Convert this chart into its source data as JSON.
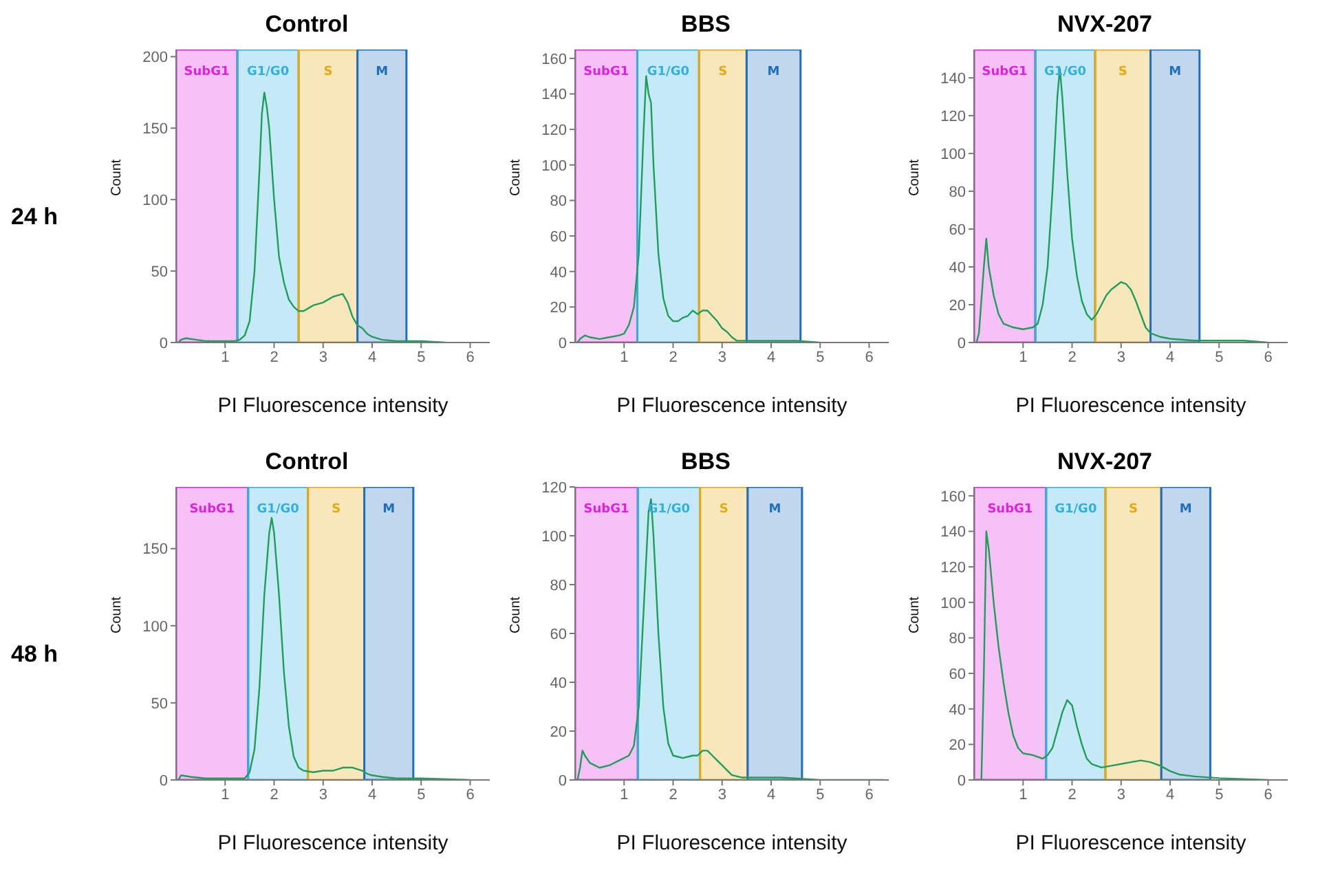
{
  "chart_data": [
    {
      "type": "line",
      "title": "Control",
      "xlabel": "PI Fluorescence intensity",
      "ylabel": "Count",
      "annotations": [
        "24 h"
      ],
      "xlim": [
        0,
        6.4
      ],
      "xticks": [
        1,
        2,
        3,
        4,
        5,
        6
      ],
      "ylim": [
        0,
        205
      ],
      "yticks": [
        0,
        50,
        100,
        150,
        200
      ],
      "grid": false,
      "marker": "none",
      "bands": [
        {
          "axis": "x",
          "from": 0,
          "to": 1.25,
          "label": "SubG1",
          "color": "#e020e0"
        },
        {
          "axis": "x",
          "from": 1.25,
          "to": 2.5,
          "label": "G1/G0",
          "color": "#30b0e0"
        },
        {
          "axis": "x",
          "from": 2.5,
          "to": 3.7,
          "label": "S",
          "color": "#e8a810"
        },
        {
          "axis": "x",
          "from": 3.7,
          "to": 4.7,
          "label": "M",
          "color": "#1f6fbf"
        }
      ],
      "series": [
        {
          "color": "#1e9e5a",
          "x": [
            0.05,
            0.1,
            0.2,
            0.4,
            0.6,
            0.8,
            1.0,
            1.2,
            1.3,
            1.4,
            1.5,
            1.6,
            1.7,
            1.75,
            1.8,
            1.85,
            1.9,
            2.0,
            2.1,
            2.2,
            2.3,
            2.4,
            2.5,
            2.6,
            2.7,
            2.8,
            2.9,
            3.0,
            3.1,
            3.2,
            3.3,
            3.4,
            3.5,
            3.6,
            3.7,
            3.8,
            3.9,
            4.0,
            4.2,
            4.5,
            5.0,
            5.5
          ],
          "values": [
            0,
            2,
            3,
            2,
            1,
            1,
            1,
            1,
            2,
            5,
            15,
            50,
            120,
            160,
            175,
            165,
            150,
            100,
            60,
            42,
            30,
            25,
            22,
            22,
            24,
            26,
            27,
            28,
            30,
            32,
            33,
            34,
            28,
            18,
            12,
            10,
            6,
            4,
            2,
            1,
            1,
            0
          ]
        }
      ]
    },
    {
      "type": "line",
      "title": "BBS",
      "xlabel": "PI Fluorescence intensity",
      "ylabel": "Count",
      "xlim": [
        0,
        6.4
      ],
      "xticks": [
        1,
        2,
        3,
        4,
        5,
        6
      ],
      "ylim": [
        0,
        165
      ],
      "yticks": [
        0,
        20,
        40,
        60,
        80,
        100,
        120,
        140,
        160
      ],
      "grid": false,
      "marker": "none",
      "bands": [
        {
          "axis": "x",
          "from": 0,
          "to": 1.27,
          "label": "SubG1",
          "color": "#e020e0"
        },
        {
          "axis": "x",
          "from": 1.27,
          "to": 2.53,
          "label": "G1/G0",
          "color": "#30b0e0"
        },
        {
          "axis": "x",
          "from": 2.53,
          "to": 3.5,
          "label": "S",
          "color": "#e8a810"
        },
        {
          "axis": "x",
          "from": 3.5,
          "to": 4.6,
          "label": "M",
          "color": "#1f6fbf"
        }
      ],
      "series": [
        {
          "color": "#1e9e5a",
          "x": [
            0.05,
            0.1,
            0.2,
            0.3,
            0.5,
            0.7,
            0.9,
            1.0,
            1.1,
            1.2,
            1.3,
            1.4,
            1.45,
            1.5,
            1.55,
            1.6,
            1.7,
            1.8,
            1.9,
            2.0,
            2.1,
            2.2,
            2.3,
            2.4,
            2.5,
            2.6,
            2.7,
            2.8,
            2.9,
            3.0,
            3.1,
            3.2,
            3.3,
            3.5,
            4.0,
            4.5,
            5.0
          ],
          "values": [
            0,
            2,
            4,
            3,
            2,
            3,
            4,
            5,
            10,
            20,
            50,
            120,
            150,
            140,
            135,
            100,
            50,
            25,
            15,
            12,
            12,
            14,
            15,
            18,
            16,
            18,
            18,
            15,
            12,
            8,
            6,
            3,
            1,
            1,
            1,
            1,
            0
          ]
        }
      ]
    },
    {
      "type": "line",
      "title": "NVX-207",
      "xlabel": "PI Fluorescence intensity",
      "ylabel": "Count",
      "xlim": [
        0,
        6.4
      ],
      "xticks": [
        1,
        2,
        3,
        4,
        5,
        6
      ],
      "ylim": [
        0,
        155
      ],
      "yticks": [
        0,
        20,
        40,
        60,
        80,
        100,
        120,
        140
      ],
      "grid": false,
      "marker": "none",
      "bands": [
        {
          "axis": "x",
          "from": 0,
          "to": 1.25,
          "label": "SubG1",
          "color": "#e020e0"
        },
        {
          "axis": "x",
          "from": 1.25,
          "to": 2.47,
          "label": "G1/G0",
          "color": "#30b0e0"
        },
        {
          "axis": "x",
          "from": 2.47,
          "to": 3.6,
          "label": "S",
          "color": "#e8a810"
        },
        {
          "axis": "x",
          "from": 3.6,
          "to": 4.6,
          "label": "M",
          "color": "#1f6fbf"
        }
      ],
      "series": [
        {
          "color": "#1e9e5a",
          "x": [
            0.05,
            0.1,
            0.2,
            0.25,
            0.3,
            0.4,
            0.5,
            0.6,
            0.8,
            1.0,
            1.2,
            1.3,
            1.4,
            1.5,
            1.6,
            1.7,
            1.75,
            1.8,
            1.9,
            2.0,
            2.1,
            2.2,
            2.3,
            2.4,
            2.5,
            2.6,
            2.7,
            2.8,
            2.9,
            3.0,
            3.1,
            3.2,
            3.3,
            3.4,
            3.5,
            3.6,
            3.8,
            4.0,
            4.5,
            5.0,
            5.5,
            6.0
          ],
          "values": [
            0,
            5,
            40,
            55,
            40,
            25,
            15,
            10,
            8,
            7,
            8,
            10,
            20,
            40,
            80,
            130,
            145,
            130,
            90,
            55,
            35,
            22,
            15,
            12,
            15,
            20,
            25,
            28,
            30,
            32,
            31,
            28,
            22,
            15,
            8,
            5,
            3,
            2,
            1,
            1,
            1,
            0
          ]
        }
      ]
    },
    {
      "type": "line",
      "title": "Control",
      "xlabel": "PI Fluorescence intensity",
      "ylabel": "Count",
      "annotations": [
        "48 h"
      ],
      "xlim": [
        0,
        6.4
      ],
      "xticks": [
        1,
        2,
        3,
        4,
        5,
        6
      ],
      "ylim": [
        0,
        190
      ],
      "yticks": [
        0,
        50,
        100,
        150
      ],
      "grid": false,
      "marker": "none",
      "bands": [
        {
          "axis": "x",
          "from": 0,
          "to": 1.47,
          "label": "SubG1",
          "color": "#e020e0"
        },
        {
          "axis": "x",
          "from": 1.47,
          "to": 2.69,
          "label": "G1/G0",
          "color": "#30b0e0"
        },
        {
          "axis": "x",
          "from": 2.69,
          "to": 3.84,
          "label": "S",
          "color": "#e8a810"
        },
        {
          "axis": "x",
          "from": 3.84,
          "to": 4.84,
          "label": "M",
          "color": "#1f6fbf"
        }
      ],
      "series": [
        {
          "color": "#1e9e5a",
          "x": [
            0.05,
            0.1,
            0.3,
            0.6,
            1.0,
            1.4,
            1.5,
            1.6,
            1.7,
            1.8,
            1.9,
            1.95,
            2.0,
            2.1,
            2.2,
            2.3,
            2.4,
            2.5,
            2.6,
            2.8,
            3.0,
            3.2,
            3.4,
            3.6,
            3.8,
            3.9,
            4.0,
            4.2,
            4.5,
            5.0,
            6.0
          ],
          "values": [
            0,
            3,
            2,
            1,
            1,
            1,
            5,
            20,
            60,
            120,
            160,
            170,
            160,
            120,
            70,
            35,
            15,
            8,
            6,
            5,
            6,
            6,
            8,
            8,
            6,
            4,
            3,
            2,
            1,
            1,
            0
          ]
        }
      ]
    },
    {
      "type": "line",
      "title": "BBS",
      "xlabel": "PI Fluorescence intensity",
      "ylabel": "Count",
      "xlim": [
        0,
        6.4
      ],
      "xticks": [
        1,
        2,
        3,
        4,
        5,
        6
      ],
      "ylim": [
        0,
        120
      ],
      "yticks": [
        0,
        20,
        40,
        60,
        80,
        100,
        120
      ],
      "grid": false,
      "marker": "none",
      "bands": [
        {
          "axis": "x",
          "from": 0,
          "to": 1.28,
          "label": "SubG1",
          "color": "#e020e0"
        },
        {
          "axis": "x",
          "from": 1.28,
          "to": 2.55,
          "label": "G1/G0",
          "color": "#30b0e0"
        },
        {
          "axis": "x",
          "from": 2.55,
          "to": 3.52,
          "label": "S",
          "color": "#e8a810"
        },
        {
          "axis": "x",
          "from": 3.52,
          "to": 4.63,
          "label": "M",
          "color": "#1f6fbf"
        }
      ],
      "series": [
        {
          "color": "#1e9e5a",
          "x": [
            0.05,
            0.1,
            0.15,
            0.2,
            0.3,
            0.5,
            0.7,
            0.9,
            1.1,
            1.2,
            1.3,
            1.4,
            1.5,
            1.55,
            1.6,
            1.7,
            1.8,
            1.9,
            2.0,
            2.2,
            2.4,
            2.5,
            2.6,
            2.7,
            2.8,
            2.9,
            3.0,
            3.1,
            3.2,
            3.4,
            3.8,
            4.2,
            5.0,
            6.3
          ],
          "values": [
            0,
            5,
            12,
            10,
            7,
            5,
            6,
            8,
            10,
            14,
            30,
            70,
            110,
            115,
            100,
            60,
            30,
            15,
            10,
            9,
            10,
            10,
            12,
            12,
            10,
            8,
            6,
            4,
            2,
            1,
            1,
            1,
            0,
            0
          ]
        }
      ]
    },
    {
      "type": "line",
      "title": "NVX-207",
      "xlabel": "PI Fluorescence intensity",
      "ylabel": "Count",
      "xlim": [
        0,
        6.4
      ],
      "xticks": [
        1,
        2,
        3,
        4,
        5,
        6
      ],
      "ylim": [
        0,
        165
      ],
      "yticks": [
        0,
        20,
        40,
        60,
        80,
        100,
        120,
        140,
        160
      ],
      "grid": false,
      "marker": "none",
      "bands": [
        {
          "axis": "x",
          "from": 0,
          "to": 1.47,
          "label": "SubG1",
          "color": "#e020e0"
        },
        {
          "axis": "x",
          "from": 1.47,
          "to": 2.68,
          "label": "G1/G0",
          "color": "#30b0e0"
        },
        {
          "axis": "x",
          "from": 2.68,
          "to": 3.82,
          "label": "S",
          "color": "#e8a810"
        },
        {
          "axis": "x",
          "from": 3.82,
          "to": 4.82,
          "label": "M",
          "color": "#1f6fbf"
        }
      ],
      "series": [
        {
          "color": "#1e9e5a",
          "x": [
            0.05,
            0.15,
            0.2,
            0.25,
            0.3,
            0.4,
            0.5,
            0.6,
            0.7,
            0.8,
            0.9,
            1.0,
            1.2,
            1.4,
            1.5,
            1.6,
            1.7,
            1.8,
            1.9,
            2.0,
            2.1,
            2.2,
            2.3,
            2.4,
            2.6,
            2.8,
            3.0,
            3.2,
            3.4,
            3.6,
            3.8,
            4.0,
            4.2,
            4.5,
            5.0,
            6.0
          ],
          "values": [
            0,
            0,
            60,
            140,
            130,
            100,
            75,
            55,
            38,
            25,
            18,
            15,
            14,
            12,
            14,
            18,
            28,
            38,
            45,
            42,
            30,
            20,
            12,
            9,
            7,
            8,
            9,
            10,
            11,
            10,
            8,
            5,
            3,
            2,
            1,
            0
          ]
        }
      ]
    }
  ]
}
